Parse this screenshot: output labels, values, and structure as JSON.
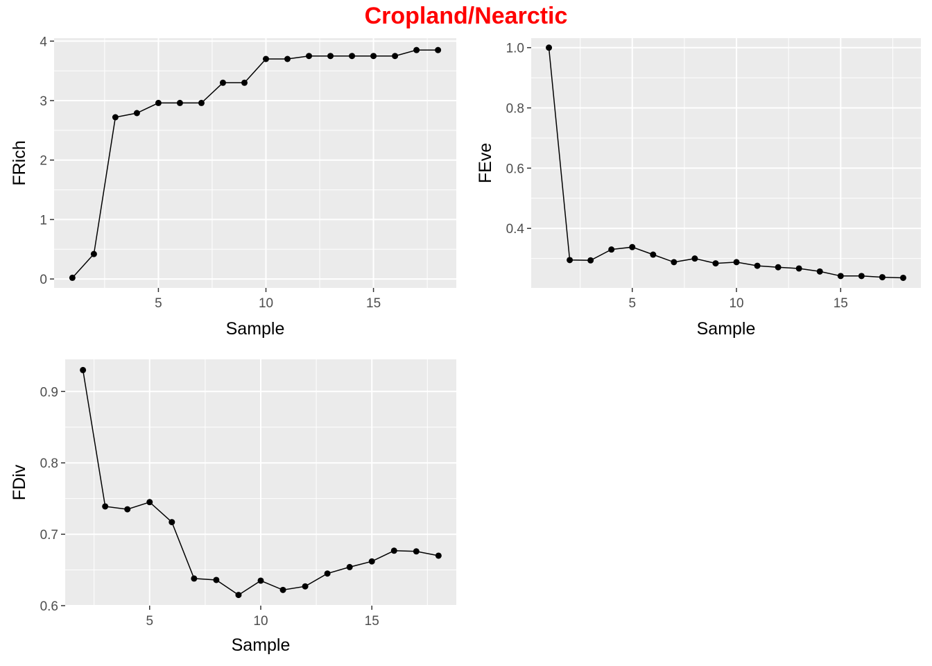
{
  "title": "Cropland/Nearctic",
  "colors": {
    "title": "#ff0000",
    "panel_bg": "#ebebeb",
    "grid": "#ffffff",
    "line": "#000000",
    "tick_text": "#4d4d4d"
  },
  "chart_data": [
    {
      "id": "frich",
      "type": "line",
      "xlabel": "Sample",
      "ylabel": "FRich",
      "xlim": [
        0.15,
        18.85
      ],
      "ylim": [
        -0.15,
        4.05
      ],
      "xticks": [
        5,
        10,
        15
      ],
      "yticks": [
        0,
        1,
        2,
        3,
        4
      ],
      "x": [
        1,
        2,
        3,
        4,
        5,
        6,
        7,
        8,
        9,
        10,
        11,
        12,
        13,
        14,
        15,
        16,
        17,
        18
      ],
      "y": [
        0.02,
        0.42,
        2.72,
        2.79,
        2.96,
        2.96,
        2.96,
        3.3,
        3.3,
        3.7,
        3.7,
        3.75,
        3.75,
        3.75,
        3.75,
        3.75,
        3.85,
        3.85
      ]
    },
    {
      "id": "feve",
      "type": "line",
      "xlabel": "Sample",
      "ylabel": "FEve",
      "xlim": [
        0.15,
        18.85
      ],
      "ylim": [
        0.2025,
        1.0315
      ],
      "xticks": [
        5,
        10,
        15
      ],
      "yticks": [
        0.4,
        0.6,
        0.8,
        1.0
      ],
      "ytick_labels": [
        "0.4",
        "0.6",
        "0.8",
        "1.0"
      ],
      "x": [
        1,
        2,
        3,
        4,
        5,
        6,
        7,
        8,
        9,
        10,
        11,
        12,
        13,
        14,
        15,
        16,
        17,
        18
      ],
      "y": [
        1.0,
        0.295,
        0.294,
        0.33,
        0.338,
        0.313,
        0.288,
        0.3,
        0.284,
        0.288,
        0.276,
        0.271,
        0.267,
        0.257,
        0.242,
        0.242,
        0.238,
        0.236
      ]
    },
    {
      "id": "fdiv",
      "type": "line",
      "xlabel": "Sample",
      "ylabel": "FDiv",
      "xlim": [
        1.2,
        18.8
      ],
      "ylim": [
        0.6,
        0.945
      ],
      "xticks": [
        5,
        10,
        15
      ],
      "yticks": [
        0.6,
        0.7,
        0.8,
        0.9
      ],
      "x": [
        2,
        3,
        4,
        5,
        6,
        7,
        8,
        9,
        10,
        11,
        12,
        13,
        14,
        15,
        16,
        17,
        18
      ],
      "y": [
        0.93,
        0.739,
        0.735,
        0.745,
        0.717,
        0.638,
        0.636,
        0.615,
        0.635,
        0.622,
        0.627,
        0.645,
        0.654,
        0.662,
        0.677,
        0.676,
        0.67
      ]
    }
  ]
}
